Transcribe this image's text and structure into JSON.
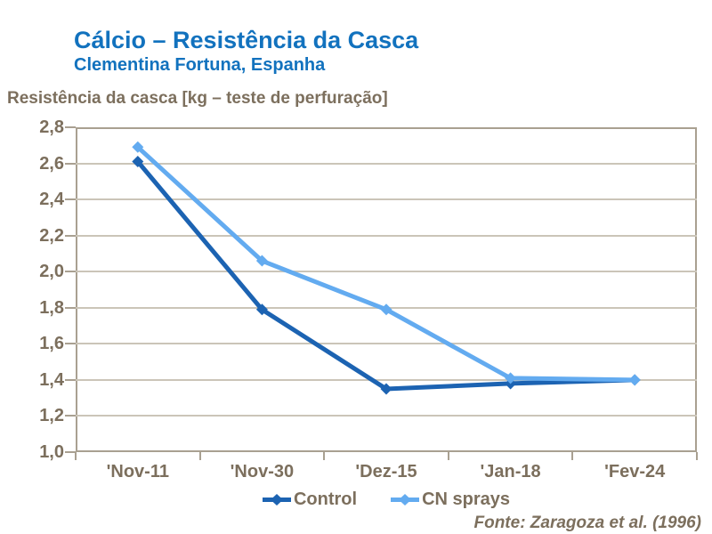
{
  "header": {
    "title": "Cálcio – Resistência da Casca",
    "subtitle": "Clementina Fortuna, Espanha"
  },
  "source": "Fonte: Zaragoza et al. (1996)",
  "colors": {
    "title_blue": "#1272BE",
    "text_brown": "#7C6F5D",
    "axis_line": "#A9A091",
    "gridline": "#CBC5B8",
    "control": "#1C63B2",
    "cn_sprays": "#63ABF0"
  },
  "chart_data": {
    "type": "line",
    "title": "Cálcio – Resistência da Casca",
    "subtitle": "Clementina Fortuna, Espanha",
    "categories": [
      "'Nov-11",
      "'Nov-30",
      "'Dez-15",
      "'Jan-18",
      "'Fev-24"
    ],
    "series": [
      {
        "name": "Control",
        "color_key": "control",
        "values": [
          2.61,
          1.79,
          1.35,
          1.38,
          1.4
        ]
      },
      {
        "name": "CN sprays",
        "color_key": "cn_sprays",
        "values": [
          2.69,
          2.06,
          1.79,
          1.41,
          1.4
        ]
      }
    ],
    "xlabel": "",
    "ylabel": "Resistência da casca [kg – teste de perfuração]",
    "ylim": [
      1.0,
      2.8
    ],
    "ytick_step": 0.2,
    "ytick_labels": [
      "1,0",
      "1,2",
      "1,4",
      "1,6",
      "1,8",
      "2,0",
      "2,2",
      "2,4",
      "2,6",
      "2,8"
    ],
    "grid": true,
    "legend_position": "bottom",
    "marker": "diamond"
  }
}
